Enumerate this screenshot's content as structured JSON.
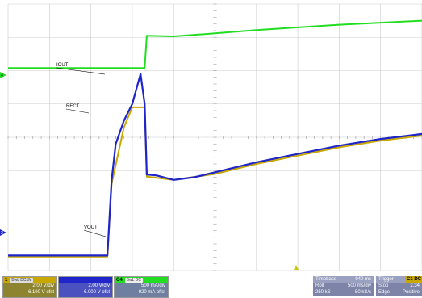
{
  "colors": {
    "ch1": "#c8a800",
    "ch2": "#1f25c9",
    "ch4": "#22dd22",
    "grid": "#cccccc",
    "status_bg": "#7e84a8"
  },
  "labels": {
    "iout": "IOUT",
    "rect": "RECT",
    "vout": "VOUT"
  },
  "markers": {
    "ch4_level": "4",
    "ch2_level": "2"
  },
  "channels": [
    {
      "id": "ch1",
      "num": "1",
      "tag": "BwL DC1M",
      "scale": "2.00 V/div",
      "offset": "-6.100 V ofst"
    },
    {
      "id": "ch2",
      "num": "",
      "tag": "",
      "scale": "2.00 V/div",
      "offset": "-6.000 V ofst"
    },
    {
      "id": "ch4",
      "num": "C4",
      "tag": "BwL DC",
      "scale": "500 mA/div",
      "offset": "920 mA offst"
    }
  ],
  "timebase": {
    "title": "Timebase",
    "value": "940 ms",
    "mode": "Roll",
    "div": "500 ms/div",
    "samples": "250 kS",
    "rate": "50 kS/s"
  },
  "trigger": {
    "title": "Trigger",
    "badge": "C1 DC",
    "state": "Stop",
    "level": "2.34",
    "type": "Edge",
    "slope": "Positive"
  },
  "chart_data": {
    "type": "line",
    "x_divisions": 10,
    "y_divisions": 8,
    "series": [
      {
        "name": "IOUT",
        "color": "#22dd22",
        "x": [
          0,
          3.0,
          3.3,
          3.35,
          4.0,
          5.0,
          6.0,
          7.0,
          8.0,
          9.0,
          10.0
        ],
        "y": [
          6.08,
          6.08,
          6.08,
          7.05,
          7.03,
          7.12,
          7.22,
          7.3,
          7.38,
          7.44,
          7.5
        ]
      },
      {
        "name": "RECT",
        "color": "#1f25c9",
        "x": [
          0,
          2.2,
          2.4,
          2.5,
          2.6,
          2.8,
          3.0,
          3.2,
          3.3,
          3.35,
          3.6,
          4.0,
          4.5,
          5.0,
          6.0,
          7.0,
          8.0,
          9.0,
          10.0
        ],
        "y": [
          0.45,
          0.45,
          0.45,
          2.7,
          3.8,
          4.5,
          5.0,
          5.9,
          5.0,
          2.88,
          2.85,
          2.72,
          2.8,
          2.95,
          3.25,
          3.5,
          3.75,
          3.95,
          4.1
        ]
      },
      {
        "name": "VOUT",
        "color": "#c8a800",
        "x": [
          0,
          2.2,
          2.4,
          2.5,
          2.8,
          3.0,
          3.3,
          3.35,
          4.0,
          5.0,
          6.0,
          7.0,
          8.0,
          9.0,
          10.0
        ],
        "y": [
          0.42,
          0.42,
          0.42,
          2.6,
          4.3,
          4.9,
          4.9,
          2.82,
          2.72,
          2.9,
          3.2,
          3.45,
          3.7,
          3.9,
          4.05
        ]
      }
    ]
  }
}
